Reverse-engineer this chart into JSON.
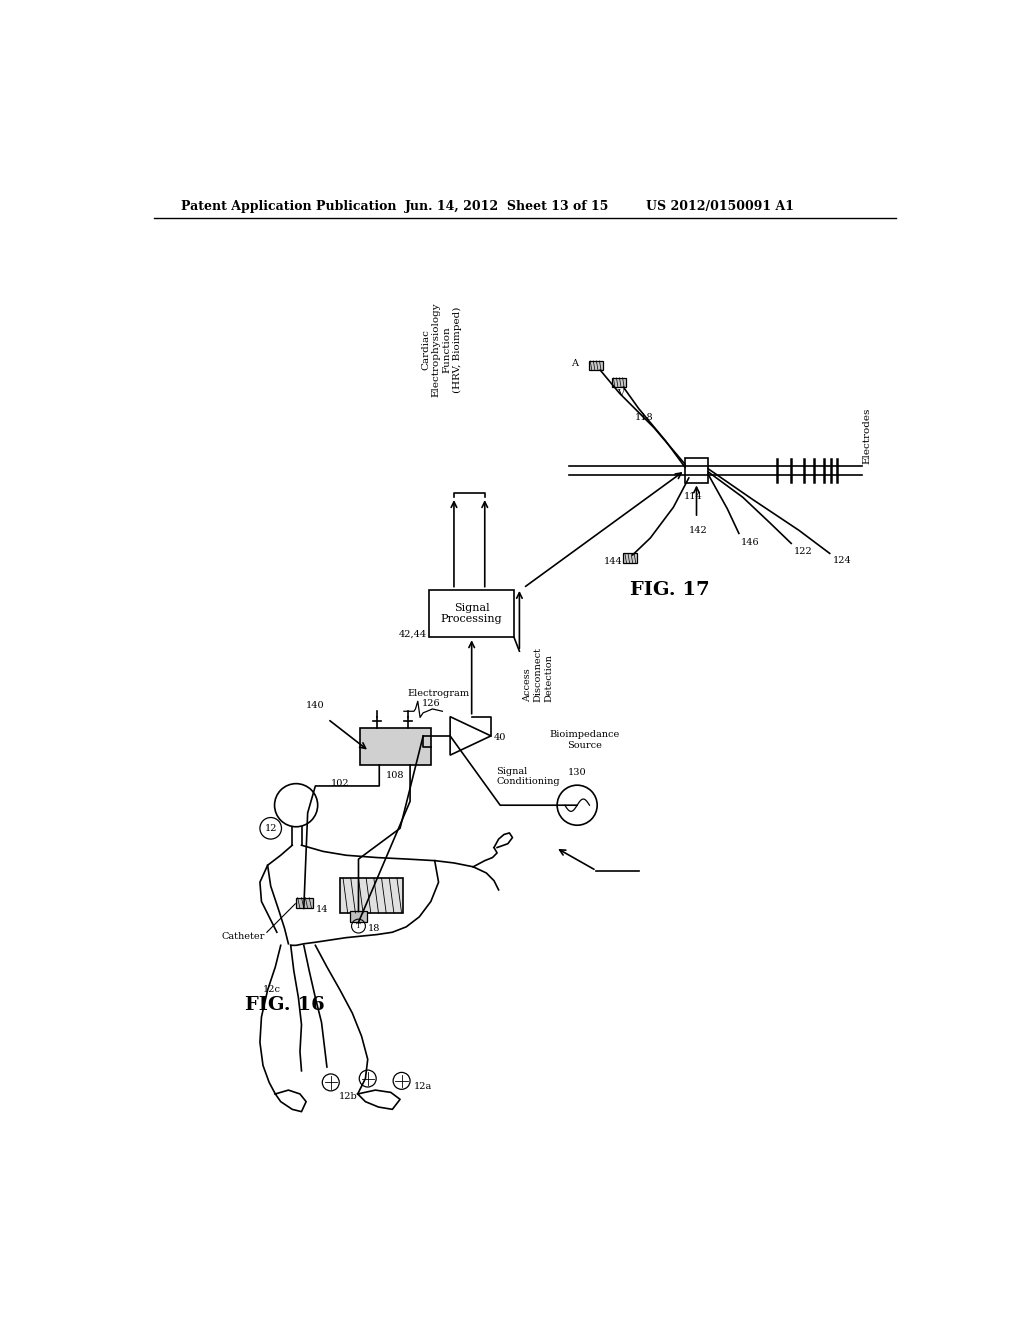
{
  "bg_color": "#ffffff",
  "header_left": "Patent Application Publication",
  "header_mid": "Jun. 14, 2012  Sheet 13 of 15",
  "header_right": "US 2012/0150091 A1",
  "fig16_label": "FIG. 16",
  "fig17_label": "FIG. 17"
}
